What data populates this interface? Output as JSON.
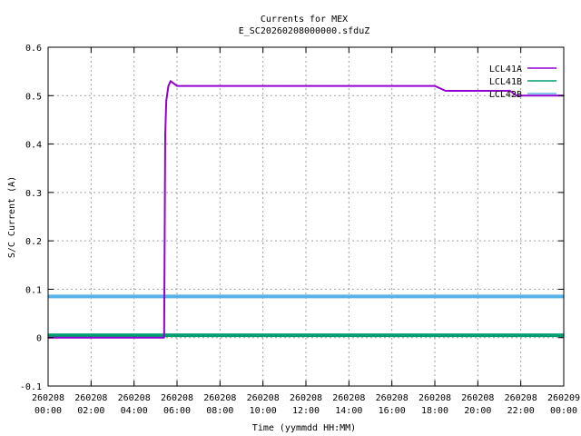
{
  "chart_data": {
    "type": "line",
    "title": "Currents for MEX",
    "subtitle": "E_SC20260208000000.sfduZ",
    "xlabel": "Time (yymmdd HH:MM)",
    "ylabel": "S/C Current (A)",
    "xlim": [
      "2026-02-08 00:00",
      "2026-02-09 00:00"
    ],
    "ylim": [
      -0.1,
      0.6
    ],
    "grid": true,
    "legend_position": "top-right",
    "y_ticks": [
      {
        "value": -0.1,
        "label": "-0.1"
      },
      {
        "value": 0,
        "label": "0"
      },
      {
        "value": 0.1,
        "label": "0.1"
      },
      {
        "value": 0.2,
        "label": "0.2"
      },
      {
        "value": 0.3,
        "label": "0.3"
      },
      {
        "value": 0.4,
        "label": "0.4"
      },
      {
        "value": 0.5,
        "label": "0.5"
      },
      {
        "value": 0.6,
        "label": "0.6"
      }
    ],
    "x_ticks": [
      {
        "hour": 0,
        "date": "260208",
        "time": "00:00"
      },
      {
        "hour": 2,
        "date": "260208",
        "time": "02:00"
      },
      {
        "hour": 4,
        "date": "260208",
        "time": "04:00"
      },
      {
        "hour": 6,
        "date": "260208",
        "time": "06:00"
      },
      {
        "hour": 8,
        "date": "260208",
        "time": "08:00"
      },
      {
        "hour": 10,
        "date": "260208",
        "time": "10:00"
      },
      {
        "hour": 12,
        "date": "260208",
        "time": "12:00"
      },
      {
        "hour": 14,
        "date": "260208",
        "time": "14:00"
      },
      {
        "hour": 16,
        "date": "260208",
        "time": "16:00"
      },
      {
        "hour": 18,
        "date": "260208",
        "time": "18:00"
      },
      {
        "hour": 20,
        "date": "260208",
        "time": "20:00"
      },
      {
        "hour": 22,
        "date": "260208",
        "time": "22:00"
      },
      {
        "hour": 24,
        "date": "260209",
        "time": "00:00"
      }
    ],
    "series": [
      {
        "name": "LCL41A",
        "color": "#9400d3",
        "x": [
          0,
          1,
          2,
          3,
          4,
          5,
          5.4,
          5.45,
          5.5,
          5.6,
          5.7,
          6,
          7,
          8,
          9,
          10,
          11,
          12,
          13,
          14,
          15,
          16,
          17,
          18,
          18.5,
          19,
          20,
          21,
          21.5,
          21.8,
          22,
          23,
          24
        ],
        "y": [
          0,
          0,
          0,
          0,
          0,
          0,
          0,
          0.42,
          0.49,
          0.52,
          0.53,
          0.52,
          0.52,
          0.52,
          0.52,
          0.52,
          0.52,
          0.52,
          0.52,
          0.52,
          0.52,
          0.52,
          0.52,
          0.52,
          0.51,
          0.51,
          0.51,
          0.51,
          0.51,
          0.5,
          0.5,
          0.5,
          0.5
        ]
      },
      {
        "name": "LCL41B",
        "color": "#009e73",
        "x": [
          0,
          2,
          4,
          6,
          8,
          10,
          12,
          14,
          16,
          18,
          20,
          22,
          24
        ],
        "y": [
          0.005,
          0.005,
          0.005,
          0.005,
          0.005,
          0.005,
          0.005,
          0.005,
          0.005,
          0.005,
          0.005,
          0.005,
          0.005
        ]
      },
      {
        "name": "LCL42B",
        "color": "#56b4e9",
        "x": [
          0,
          2,
          4,
          6,
          8,
          10,
          12,
          14,
          16,
          18,
          20,
          22,
          24
        ],
        "y": [
          0.085,
          0.085,
          0.085,
          0.085,
          0.085,
          0.085,
          0.085,
          0.085,
          0.085,
          0.085,
          0.085,
          0.085,
          0.085
        ]
      }
    ]
  }
}
